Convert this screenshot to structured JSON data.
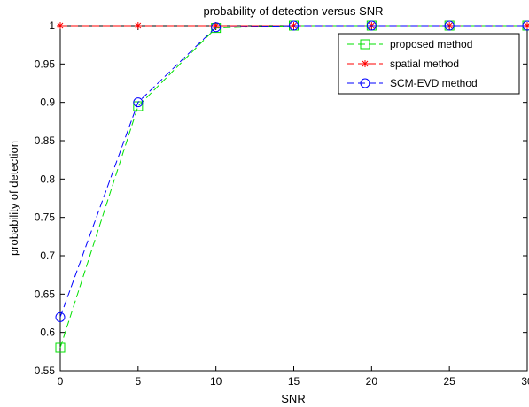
{
  "chart_data": {
    "type": "line",
    "title": "probability of detection versus SNR",
    "xlabel": "SNR",
    "ylabel": "probability of detection",
    "xlim": [
      0,
      30
    ],
    "ylim": [
      0.55,
      1
    ],
    "xticks": [
      0,
      5,
      10,
      15,
      20,
      25,
      30
    ],
    "yticks": [
      0.55,
      0.6,
      0.65,
      0.7,
      0.75,
      0.8,
      0.85,
      0.9,
      0.95,
      1
    ],
    "x": [
      0,
      5,
      10,
      15,
      20,
      25,
      30
    ],
    "grid": false,
    "legend_position": "top-right",
    "series": [
      {
        "name": "proposed method",
        "values": [
          0.58,
          0.895,
          0.997,
          1,
          1,
          1,
          1
        ],
        "color": "#00e000",
        "marker": "square",
        "line_style": "dashed"
      },
      {
        "name": "spatial method",
        "values": [
          1,
          1,
          1,
          1,
          1,
          1,
          1
        ],
        "color": "#ff0000",
        "marker": "asterisk",
        "line_style": "dashed"
      },
      {
        "name": "SCM-EVD method",
        "values": [
          0.62,
          0.9,
          0.998,
          1,
          1,
          1,
          1
        ],
        "color": "#0000ff",
        "marker": "circle",
        "line_style": "dashed"
      }
    ]
  }
}
